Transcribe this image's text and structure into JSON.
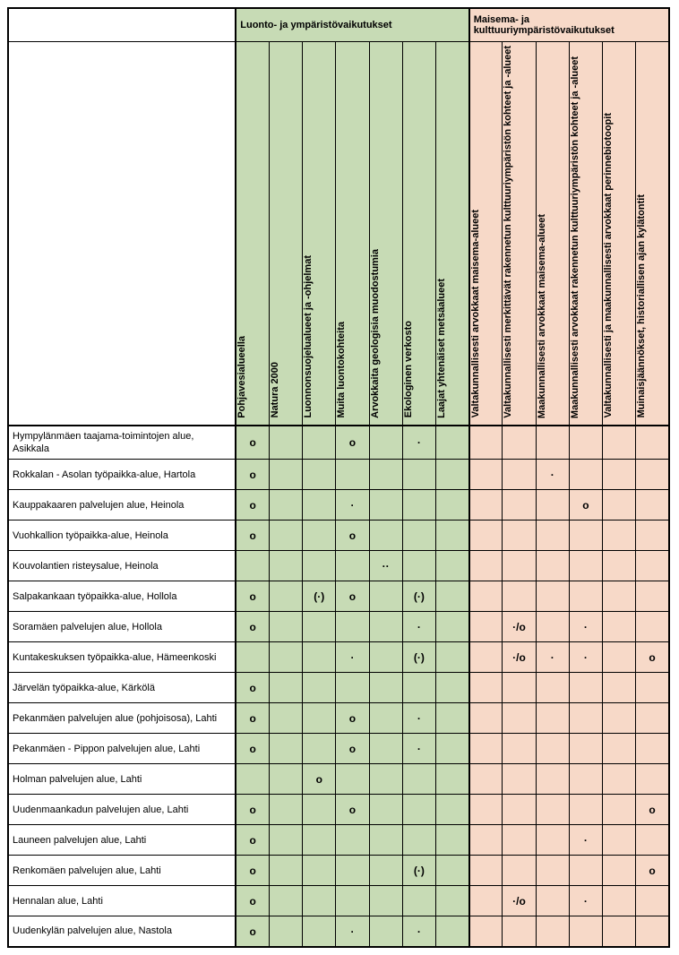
{
  "group_headers": {
    "g1": "Luonto- ja ympäristövaikutukset",
    "g2": "Maisema- ja kulttuuriympäristövaikutukset"
  },
  "columns": {
    "g1": [
      "Pohjavesialueella",
      "Natura 2000",
      "Luonnonsuojelualueet ja -ohjelmat",
      "Muita luontokohteita",
      "Arvokkaita geologisia muodostumia",
      "Ekologinen verkosto",
      "Laajat yhtenäiset metsäalueet"
    ],
    "g2": [
      "Valtakunnallisesti arvokkaat maisema-alueet",
      "Valtakunnallisesti merkittävät rakennetun kulttuuriympäristön kohteet ja -alueet",
      "Maakunnallisesti arvokkaat maisema-alueet",
      "Maakunnallisesti arvokkaat rakennetun kulttuuriympäristön kohteet ja -alueet",
      "Valtakunnallisesti ja maakunnallisesti arvokkaat perinnebiotoopit",
      "Muinaisjäännökset, historiallisen ajan kylätontit"
    ]
  },
  "rows": [
    {
      "label": "Hympylänmäen taajama-toimintojen alue, Asikkala",
      "g1": [
        "o",
        "",
        "",
        "o",
        "",
        "·",
        ""
      ],
      "g2": [
        "",
        "",
        "",
        "",
        "",
        ""
      ]
    },
    {
      "label": "Rokkalan - Asolan työpaikka-alue, Hartola",
      "g1": [
        "o",
        "",
        "",
        "",
        "",
        "",
        ""
      ],
      "g2": [
        "",
        "",
        "·",
        "",
        "",
        ""
      ]
    },
    {
      "label": "Kauppakaaren palvelujen alue, Heinola",
      "g1": [
        "o",
        "",
        "",
        "·",
        "",
        "",
        ""
      ],
      "g2": [
        "",
        "",
        "",
        "o",
        "",
        ""
      ]
    },
    {
      "label": "Vuohkallion työpaikka-alue, Heinola",
      "g1": [
        "o",
        "",
        "",
        "o",
        "",
        "",
        ""
      ],
      "g2": [
        "",
        "",
        "",
        "",
        "",
        ""
      ]
    },
    {
      "label": "Kouvolantien risteysalue, Heinola",
      "g1": [
        "",
        "",
        "",
        "",
        "··",
        "",
        ""
      ],
      "g2": [
        "",
        "",
        "",
        "",
        "",
        ""
      ]
    },
    {
      "label": "Salpakankaan työpaikka-alue, Hollola",
      "g1": [
        "o",
        "",
        "(·)",
        "o",
        "",
        "(·)",
        ""
      ],
      "g2": [
        "",
        "",
        "",
        "",
        "",
        ""
      ]
    },
    {
      "label": "Soramäen palvelujen alue, Hollola",
      "g1": [
        "o",
        "",
        "",
        "",
        "",
        "·",
        ""
      ],
      "g2": [
        "",
        "·/o",
        "",
        "·",
        "",
        ""
      ]
    },
    {
      "label": "Kuntakeskuksen työpaikka-alue, Hämeenkoski",
      "g1": [
        "",
        "",
        "",
        "·",
        "",
        "(·)",
        ""
      ],
      "g2": [
        "",
        "·/o",
        "·",
        "·",
        "",
        "o"
      ]
    },
    {
      "label": "Järvelän työpaikka-alue, Kärkölä",
      "g1": [
        "o",
        "",
        "",
        "",
        "",
        "",
        ""
      ],
      "g2": [
        "",
        "",
        "",
        "",
        "",
        ""
      ]
    },
    {
      "label": "Pekanmäen palvelujen alue (pohjoisosa), Lahti",
      "g1": [
        "o",
        "",
        "",
        "o",
        "",
        "·",
        ""
      ],
      "g2": [
        "",
        "",
        "",
        "",
        "",
        ""
      ]
    },
    {
      "label": "Pekanmäen - Pippon palvelujen alue, Lahti",
      "g1": [
        "o",
        "",
        "",
        "o",
        "",
        "·",
        ""
      ],
      "g2": [
        "",
        "",
        "",
        "",
        "",
        ""
      ]
    },
    {
      "label": "Holman palvelujen alue, Lahti",
      "g1": [
        "",
        "",
        "o",
        "",
        "",
        "",
        ""
      ],
      "g2": [
        "",
        "",
        "",
        "",
        "",
        ""
      ]
    },
    {
      "label": "Uudenmaankadun palvelujen alue, Lahti",
      "g1": [
        "o",
        "",
        "",
        "o",
        "",
        "",
        ""
      ],
      "g2": [
        "",
        "",
        "",
        "",
        "",
        "o"
      ]
    },
    {
      "label": "Launeen palvelujen alue, Lahti",
      "g1": [
        "o",
        "",
        "",
        "",
        "",
        "",
        ""
      ],
      "g2": [
        "",
        "",
        "",
        "·",
        "",
        ""
      ]
    },
    {
      "label": "Renkomäen palvelujen alue, Lahti",
      "g1": [
        "o",
        "",
        "",
        "",
        "",
        "(·)",
        ""
      ],
      "g2": [
        "",
        "",
        "",
        "",
        "",
        "o"
      ]
    },
    {
      "label": "Hennalan alue, Lahti",
      "g1": [
        "o",
        "",
        "",
        "",
        "",
        "",
        ""
      ],
      "g2": [
        "",
        "·/o",
        "",
        "·",
        "",
        ""
      ]
    },
    {
      "label": "Uudenkylän palvelujen alue, Nastola",
      "g1": [
        "o",
        "",
        "",
        "·",
        "",
        "·",
        ""
      ],
      "g2": [
        "",
        "",
        "",
        "",
        "",
        ""
      ]
    }
  ],
  "colors": {
    "g1_bg": "#c7dbb5",
    "g2_bg": "#f7d9c8",
    "border": "#000000"
  }
}
